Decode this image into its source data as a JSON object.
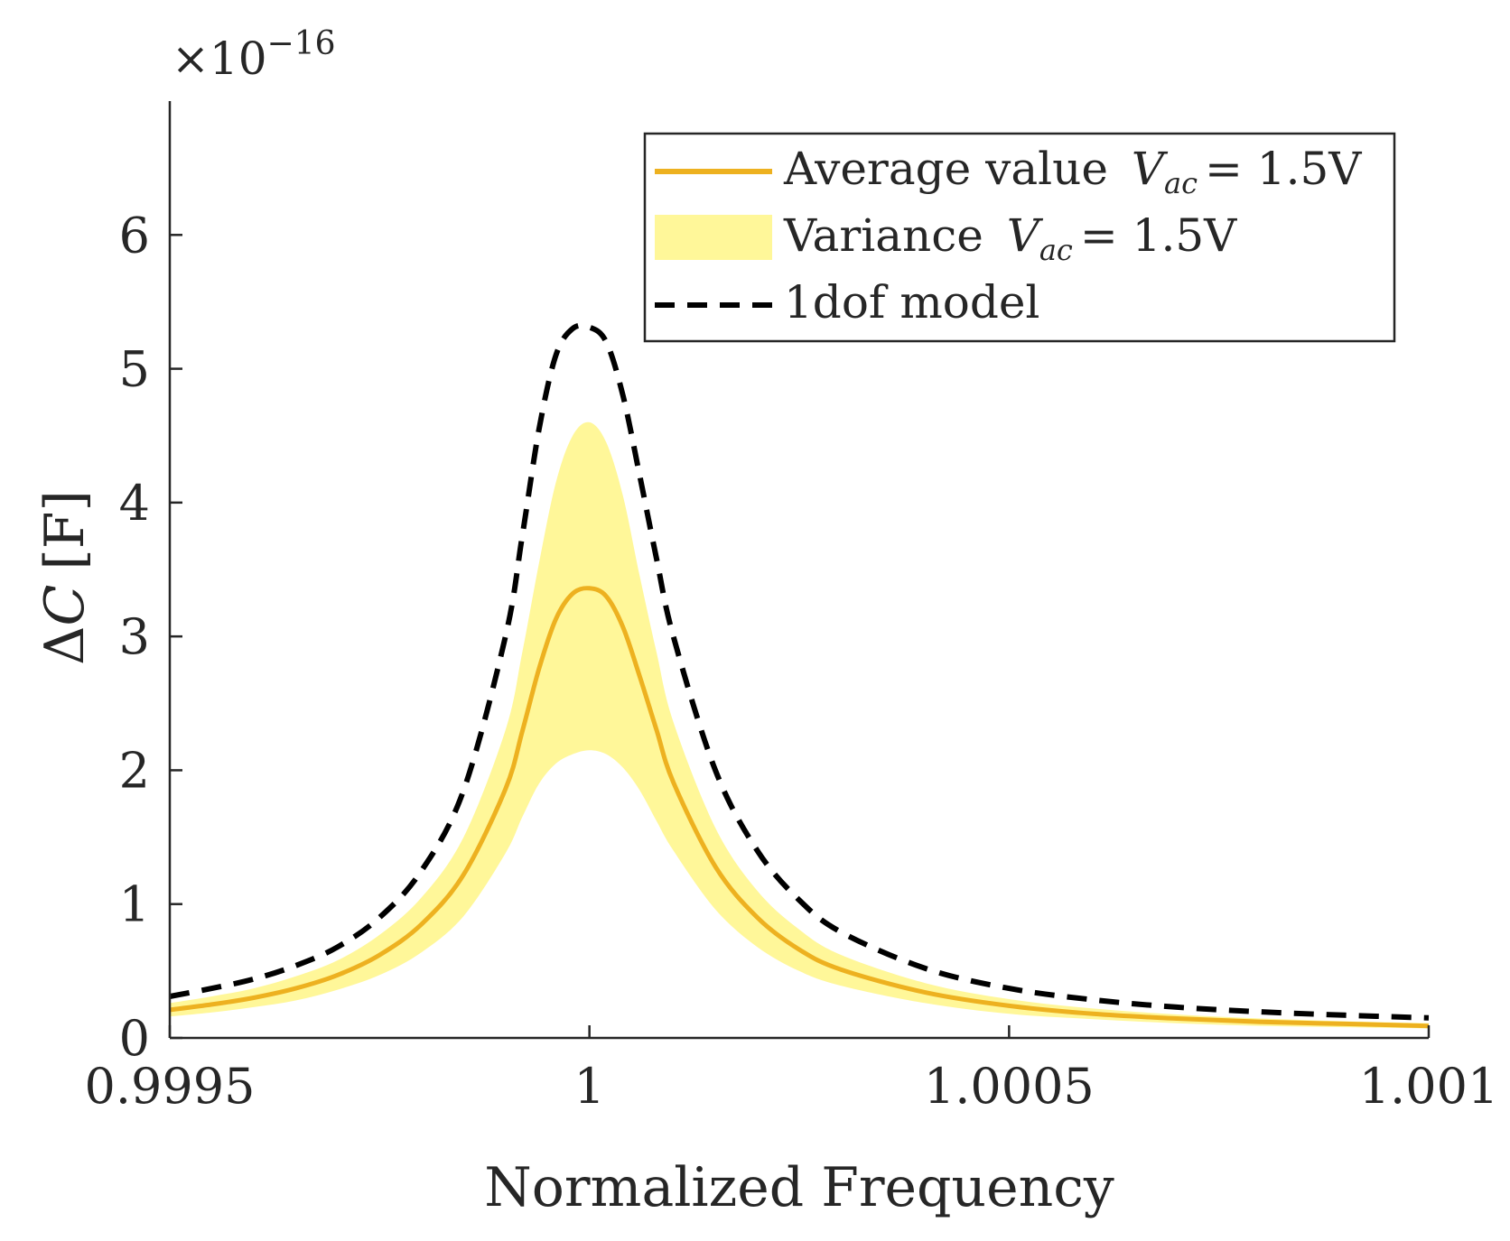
{
  "chart_data": {
    "type": "line",
    "title": "",
    "xlabel": "Normalized Frequency",
    "ylabel": "ΔC [F]",
    "ylabel_symbol": "Δ",
    "ylabel_var": "C",
    "ylabel_unit": "[F]",
    "y_exponent_label": "×10",
    "y_exponent_power": "−16",
    "xlim": [
      0.9995,
      1.001
    ],
    "ylim": [
      0,
      7
    ],
    "x_ticks": [
      0.9995,
      1,
      1.0005,
      1.001
    ],
    "x_tick_labels": [
      "0.9995",
      "1",
      "1.0005",
      "1.001"
    ],
    "y_ticks": [
      0,
      1,
      2,
      3,
      4,
      5,
      6
    ],
    "y_tick_labels": [
      "0",
      "1",
      "2",
      "3",
      "4",
      "5",
      "6"
    ],
    "grid": false,
    "legend_position": "top-right",
    "x": [
      0.9995,
      0.99955,
      0.9996,
      0.99965,
      0.9997,
      0.99975,
      0.9998,
      0.99985,
      0.9999,
      0.99992,
      0.99994,
      0.99996,
      0.99998,
      1.0,
      1.00002,
      1.00004,
      1.00006,
      1.00008,
      1.0001,
      1.00015,
      1.0002,
      1.00025,
      1.0003,
      1.0004,
      1.0005,
      1.0006,
      1.0007,
      1.0008,
      1.0009,
      1.001
    ],
    "series": [
      {
        "name": "Average value",
        "legend_label": "Average value",
        "legend_math_var": "V",
        "legend_math_sub": "ac",
        "legend_math_rest": "= 1.5V",
        "color": "#EDB120",
        "style": "solid",
        "values": [
          0.21,
          0.25,
          0.3,
          0.37,
          0.47,
          0.62,
          0.85,
          1.22,
          1.86,
          2.29,
          2.76,
          3.13,
          3.32,
          3.36,
          3.3,
          3.07,
          2.7,
          2.3,
          1.91,
          1.28,
          0.9,
          0.66,
          0.51,
          0.34,
          0.24,
          0.18,
          0.145,
          0.12,
          0.105,
          0.09
        ]
      },
      {
        "name": "Variance",
        "legend_label": "Variance",
        "legend_math_var": "V",
        "legend_math_sub": "ac",
        "legend_math_rest": "= 1.5V",
        "color": "#FFF799",
        "style": "band",
        "upper": [
          0.26,
          0.31,
          0.37,
          0.46,
          0.58,
          0.77,
          1.05,
          1.5,
          2.3,
          2.88,
          3.55,
          4.15,
          4.5,
          4.6,
          4.45,
          4.05,
          3.45,
          2.88,
          2.36,
          1.57,
          1.1,
          0.81,
          0.62,
          0.41,
          0.29,
          0.22,
          0.175,
          0.145,
          0.125,
          0.11
        ],
        "lower": [
          0.16,
          0.19,
          0.23,
          0.28,
          0.36,
          0.47,
          0.64,
          0.91,
          1.38,
          1.65,
          1.9,
          2.05,
          2.12,
          2.15,
          2.12,
          2.02,
          1.85,
          1.62,
          1.4,
          0.96,
          0.68,
          0.5,
          0.39,
          0.26,
          0.18,
          0.14,
          0.11,
          0.09,
          0.08,
          0.07
        ]
      },
      {
        "name": "1dof model",
        "legend_label": "1dof model",
        "color": "#000000",
        "style": "dashed",
        "values": [
          0.31,
          0.37,
          0.44,
          0.54,
          0.68,
          0.9,
          1.25,
          1.85,
          3.0,
          3.75,
          4.55,
          5.1,
          5.3,
          5.31,
          5.2,
          4.8,
          4.2,
          3.58,
          3.0,
          2.0,
          1.4,
          1.03,
          0.79,
          0.52,
          0.37,
          0.285,
          0.23,
          0.195,
          0.17,
          0.15
        ]
      }
    ]
  }
}
